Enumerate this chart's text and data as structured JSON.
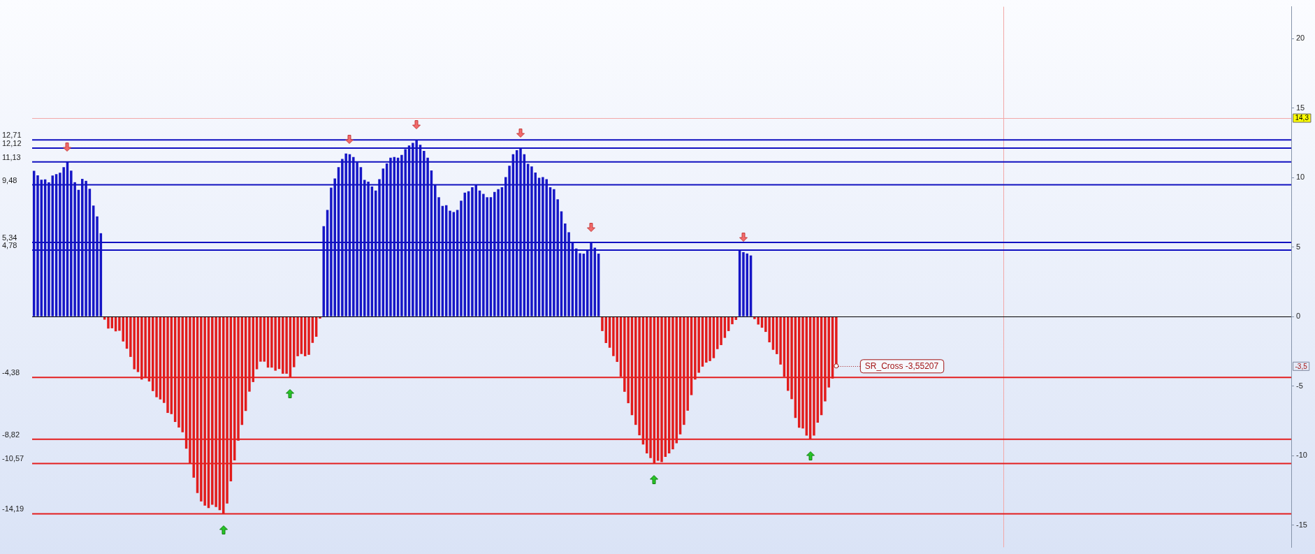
{
  "chart_data": {
    "type": "bar",
    "categories": [
      null,
      null,
      null,
      null,
      null,
      null,
      null,
      null,
      null,
      null,
      null,
      null,
      null,
      null,
      null,
      null,
      null,
      null,
      null,
      null,
      null,
      null,
      null,
      null,
      null,
      null,
      null,
      null,
      null,
      null,
      null,
      null,
      null,
      null,
      null,
      null,
      null,
      null,
      null,
      null,
      null,
      null,
      null,
      null,
      null,
      null,
      null,
      null,
      null,
      null,
      null,
      null,
      null,
      null,
      null,
      null,
      null,
      null,
      null,
      null,
      null,
      null,
      null,
      null,
      null,
      null,
      null,
      null,
      null,
      null,
      null,
      null,
      null,
      null,
      null,
      null,
      null,
      null,
      null,
      null,
      null,
      null,
      null,
      null,
      null,
      null,
      null,
      null,
      null,
      null,
      null,
      null,
      null,
      null,
      null,
      null,
      null,
      null,
      null,
      null,
      null,
      null,
      null,
      null,
      null,
      null,
      null,
      null,
      null,
      null,
      null,
      null,
      null,
      null,
      null,
      null,
      null,
      null,
      null,
      null,
      null,
      null,
      null,
      null,
      null,
      null,
      null,
      null,
      null,
      null,
      null,
      null,
      null,
      null,
      null,
      null,
      null,
      null,
      null,
      null,
      null,
      null,
      null,
      null,
      null,
      null,
      null,
      null,
      null,
      null,
      null,
      null,
      null,
      null,
      null,
      null,
      null,
      null,
      null,
      null,
      null,
      null,
      null,
      null,
      null,
      null,
      null,
      null,
      null,
      null,
      null,
      null,
      null,
      null,
      null,
      null,
      null,
      null,
      null,
      null,
      null,
      null,
      null,
      null,
      null,
      null,
      null,
      null,
      null,
      null,
      null,
      null,
      null,
      null,
      null,
      null,
      null,
      null,
      null,
      null,
      null,
      null,
      null,
      null,
      null,
      null,
      null,
      null,
      null,
      null,
      null,
      null,
      null,
      null,
      null,
      null,
      null,
      null,
      null,
      null,
      null,
      null,
      null,
      null,
      null,
      null,
      null,
      null,
      null,
      null,
      null,
      null,
      null,
      null,
      null,
      null,
      null,
      null,
      null,
      null,
      null,
      null,
      null,
      null,
      null,
      null,
      null,
      null,
      null,
      null,
      null,
      null,
      null,
      null,
      null,
      null,
      null,
      null,
      null,
      null,
      null,
      null,
      null,
      null,
      null,
      null,
      null,
      null,
      null,
      null,
      null,
      null,
      null,
      null,
      null,
      null,
      null,
      null,
      null,
      null,
      null,
      null,
      null,
      null,
      null,
      null,
      null,
      null,
      null,
      null,
      null,
      null,
      null,
      null,
      null,
      null,
      null,
      null,
      null,
      null,
      null,
      null,
      null,
      null,
      null,
      null,
      null,
      null,
      null,
      null,
      null,
      null,
      null,
      null,
      null,
      null,
      null,
      null,
      null,
      null,
      null,
      null,
      null,
      null,
      null,
      null,
      null,
      null,
      null,
      null,
      null,
      null,
      null,
      null,
      null,
      null,
      null,
      null,
      null
    ],
    "series": [
      {
        "color": "#1616c6",
        "values": [
          10.49,
          10.17,
          9.85,
          9.87,
          9.66,
          10.15,
          10.25,
          10.35,
          10.75,
          11.13,
          10.51,
          9.67,
          9.12,
          9.91,
          9.77,
          9.2,
          7.99,
          7.21,
          6,
          null,
          null,
          null,
          null,
          null,
          null,
          null,
          null,
          null,
          null,
          null,
          null,
          null,
          null,
          null,
          null,
          null,
          null,
          null,
          null,
          null,
          null,
          null,
          null,
          null,
          null,
          null,
          null,
          null,
          null,
          null,
          null,
          null,
          null,
          null,
          null,
          null,
          null,
          null,
          null,
          null,
          null,
          null,
          null,
          null,
          null,
          null,
          null,
          null,
          null,
          null,
          null,
          null,
          null,
          null,
          null,
          null,
          null,
          null,
          6.51,
          7.67,
          9.28,
          9.94,
          10.76,
          11.34,
          11.73,
          11.68,
          11.49,
          11.11,
          10.76,
          9.84,
          9.71,
          9.36,
          9.07,
          9.89,
          10.66,
          11.02,
          11.44,
          11.49,
          11.44,
          11.63,
          12.05,
          12.31,
          12.5,
          12.71,
          12.36,
          11.92,
          11.44,
          10.52,
          9.47,
          8.59,
          7.96,
          8.01,
          7.62,
          7.52,
          7.67,
          8.34,
          8.92,
          9.02,
          9.31,
          9.48,
          9.07,
          8.83,
          8.59,
          8.59,
          8.97,
          9.17,
          9.31,
          10.04,
          10.86,
          11.68,
          11.98,
          12.12,
          11.68,
          11,
          10.81,
          10.37,
          9.99,
          10.04,
          9.89,
          9.31,
          9.17,
          8.44,
          7.57,
          6.7,
          6.07,
          5.31,
          4.9,
          4.56,
          4.53,
          4.77,
          5.34,
          4.96,
          4.53,
          null,
          null,
          null,
          null,
          null,
          null,
          null,
          null,
          null,
          null,
          null,
          null,
          null,
          null,
          null,
          null,
          null,
          null,
          null,
          null,
          null,
          null,
          null,
          null,
          null,
          null,
          null,
          null,
          null,
          null,
          null,
          null,
          null,
          null,
          null,
          null,
          null,
          4.78,
          4.64,
          4.54,
          4.4,
          null,
          null,
          null,
          null,
          null,
          null,
          null,
          null,
          null,
          null,
          null,
          null,
          null,
          null,
          null,
          null,
          null,
          null,
          null,
          null,
          null,
          null,
          null,
          null,
          null,
          null,
          null,
          null,
          null,
          null,
          null,
          null,
          null,
          null,
          null,
          null,
          null,
          null,
          null,
          null,
          null,
          null,
          null,
          null,
          null,
          null,
          null,
          null,
          null,
          null,
          null,
          null,
          null,
          null,
          null,
          null,
          null,
          null,
          null,
          null,
          null,
          null,
          null,
          null,
          null,
          null,
          null,
          null,
          null,
          null,
          null,
          null,
          null,
          null,
          null,
          null,
          null,
          null,
          null,
          null,
          null,
          null,
          null,
          null,
          null,
          null,
          null,
          null,
          null,
          null,
          null,
          null,
          null,
          null,
          null,
          null,
          null,
          null,
          null,
          null,
          null,
          null,
          null,
          null,
          null,
          null,
          null,
          null,
          null,
          null,
          null,
          null,
          null,
          null,
          null,
          null,
          null,
          null,
          null,
          null,
          null,
          null,
          null,
          null,
          null,
          null,
          null,
          null,
          null,
          null,
          null,
          null,
          null,
          null,
          null,
          null,
          null,
          null,
          null,
          null,
          null,
          null,
          null,
          null,
          null
        ]
      },
      {
        "color": "#e21c1c",
        "values": [
          null,
          null,
          null,
          null,
          null,
          null,
          null,
          null,
          null,
          null,
          null,
          null,
          null,
          null,
          null,
          null,
          null,
          null,
          null,
          -0.22,
          -0.86,
          -0.84,
          -1.06,
          -1.02,
          -1.79,
          -2.31,
          -2.9,
          -3.79,
          -3.99,
          -4.53,
          -4.43,
          -4.67,
          -5.36,
          -5.8,
          -5.96,
          -6.21,
          -6.93,
          -7.01,
          -7.58,
          -7.98,
          -8.32,
          -9.51,
          -10.56,
          -11.59,
          -12.7,
          -13.3,
          -13.6,
          -13.78,
          -13.54,
          -13.7,
          -13.93,
          -14.19,
          -13.45,
          -11.85,
          -10.34,
          -8.93,
          -7.8,
          -6.79,
          -5.4,
          -4.71,
          -3.79,
          -3.24,
          -3.24,
          -3.67,
          -3.67,
          -3.89,
          -3.77,
          -4.11,
          -4.11,
          -4.38,
          -3.64,
          -2.85,
          -2.69,
          -2.85,
          -2.75,
          -1.89,
          -1.45,
          -0.14,
          null,
          null,
          null,
          null,
          null,
          null,
          null,
          null,
          null,
          null,
          null,
          null,
          null,
          null,
          null,
          null,
          null,
          null,
          null,
          null,
          null,
          null,
          null,
          null,
          null,
          null,
          null,
          null,
          null,
          null,
          null,
          null,
          null,
          null,
          null,
          null,
          null,
          null,
          null,
          null,
          null,
          null,
          null,
          null,
          null,
          null,
          null,
          null,
          null,
          null,
          null,
          null,
          null,
          null,
          null,
          null,
          null,
          null,
          null,
          null,
          null,
          null,
          null,
          null,
          null,
          null,
          null,
          null,
          null,
          null,
          null,
          null,
          null,
          null,
          null,
          -1.04,
          -1.9,
          -2.24,
          -2.84,
          -3.26,
          -4.32,
          -5.41,
          -6.23,
          -7.09,
          -7.79,
          -8.54,
          -9.2,
          -9.84,
          -10.18,
          -10.57,
          -10.37,
          -10.47,
          -10.1,
          -9.84,
          -9.55,
          -9.11,
          -8.47,
          -7.79,
          -6.77,
          -5.65,
          -4.53,
          -4.04,
          -3.6,
          -3.31,
          -3.2,
          -2.99,
          -2.34,
          -2.05,
          -1.53,
          -1.04,
          -0.55,
          -0.24,
          null,
          null,
          null,
          null,
          -0.18,
          -0.57,
          -0.8,
          -1.1,
          -1.85,
          -2.39,
          -2.7,
          -3.45,
          -4.33,
          -5.34,
          -5.94,
          -7.29,
          -7.99,
          -8.05,
          -8.56,
          -8.82,
          -8.56,
          -7.63,
          -7.09,
          -6.1,
          -5.1,
          -4.46,
          -3.55,
          null,
          null,
          null,
          null,
          null,
          null,
          null,
          null,
          null,
          null,
          null,
          null,
          null,
          null,
          null,
          null,
          null,
          null,
          null,
          null,
          null,
          null,
          null,
          null,
          null,
          null,
          null,
          null,
          null,
          null,
          null,
          null,
          null,
          null,
          null,
          null,
          null,
          null,
          null,
          null,
          null,
          null,
          null,
          null,
          null,
          null,
          null,
          null,
          null,
          null,
          null,
          null,
          null,
          null,
          null,
          null,
          null,
          null,
          null,
          null,
          null,
          null,
          null,
          null,
          null,
          null,
          null,
          null,
          null,
          null,
          null,
          null,
          null,
          null,
          null,
          null,
          null,
          null,
          null,
          null,
          null,
          null,
          null,
          null,
          null,
          null,
          null,
          null,
          null,
          null,
          null,
          null,
          null,
          null,
          null,
          null,
          null,
          null,
          null,
          null,
          null,
          null,
          null,
          null,
          null,
          null,
          null,
          null,
          null,
          null,
          null,
          null,
          null,
          null,
          null,
          null,
          null,
          null,
          null,
          null,
          null,
          null
        ]
      }
    ],
    "ylim": [
      -16.6,
      22.3
    ],
    "yticks": [
      -15,
      -10,
      -5,
      0,
      5,
      10,
      15,
      20
    ],
    "tick_labels": "y",
    "ref_lines": [
      {
        "axis": "y",
        "value": 12.71,
        "label": "12,71",
        "color": "#1010c0"
      },
      {
        "axis": "y",
        "value": 12.12,
        "label": "12,12",
        "color": "#1010c0"
      },
      {
        "axis": "y",
        "value": 11.13,
        "label": "11,13",
        "color": "#1010c0"
      },
      {
        "axis": "y",
        "value": 9.48,
        "label": "9,48",
        "color": "#1010c0"
      },
      {
        "axis": "y",
        "value": 5.34,
        "label": "5,34",
        "color": "#1010c0"
      },
      {
        "axis": "y",
        "value": 4.78,
        "label": "4,78",
        "color": "#1010c0"
      },
      {
        "axis": "y",
        "value": -4.38,
        "label": "-4,38",
        "color": "#e41e1e"
      },
      {
        "axis": "y",
        "value": -8.82,
        "label": "-8,82",
        "color": "#e41e1e"
      },
      {
        "axis": "y",
        "value": -10.57,
        "label": "-10,57",
        "color": "#e41e1e"
      },
      {
        "axis": "y",
        "value": -14.19,
        "label": "-14,19",
        "color": "#e41e1e"
      },
      {
        "axis": "y",
        "value": 0,
        "color": "#000000"
      },
      {
        "axis": "y",
        "value": 14.31,
        "color": "#f2a8a8"
      }
    ],
    "annotations": [
      "SR_Cross -3,55207",
      {
        "text": "14,3",
        "y": 14.31
      },
      {
        "text": "-3,5",
        "y": -3.55
      }
    ]
  }
}
